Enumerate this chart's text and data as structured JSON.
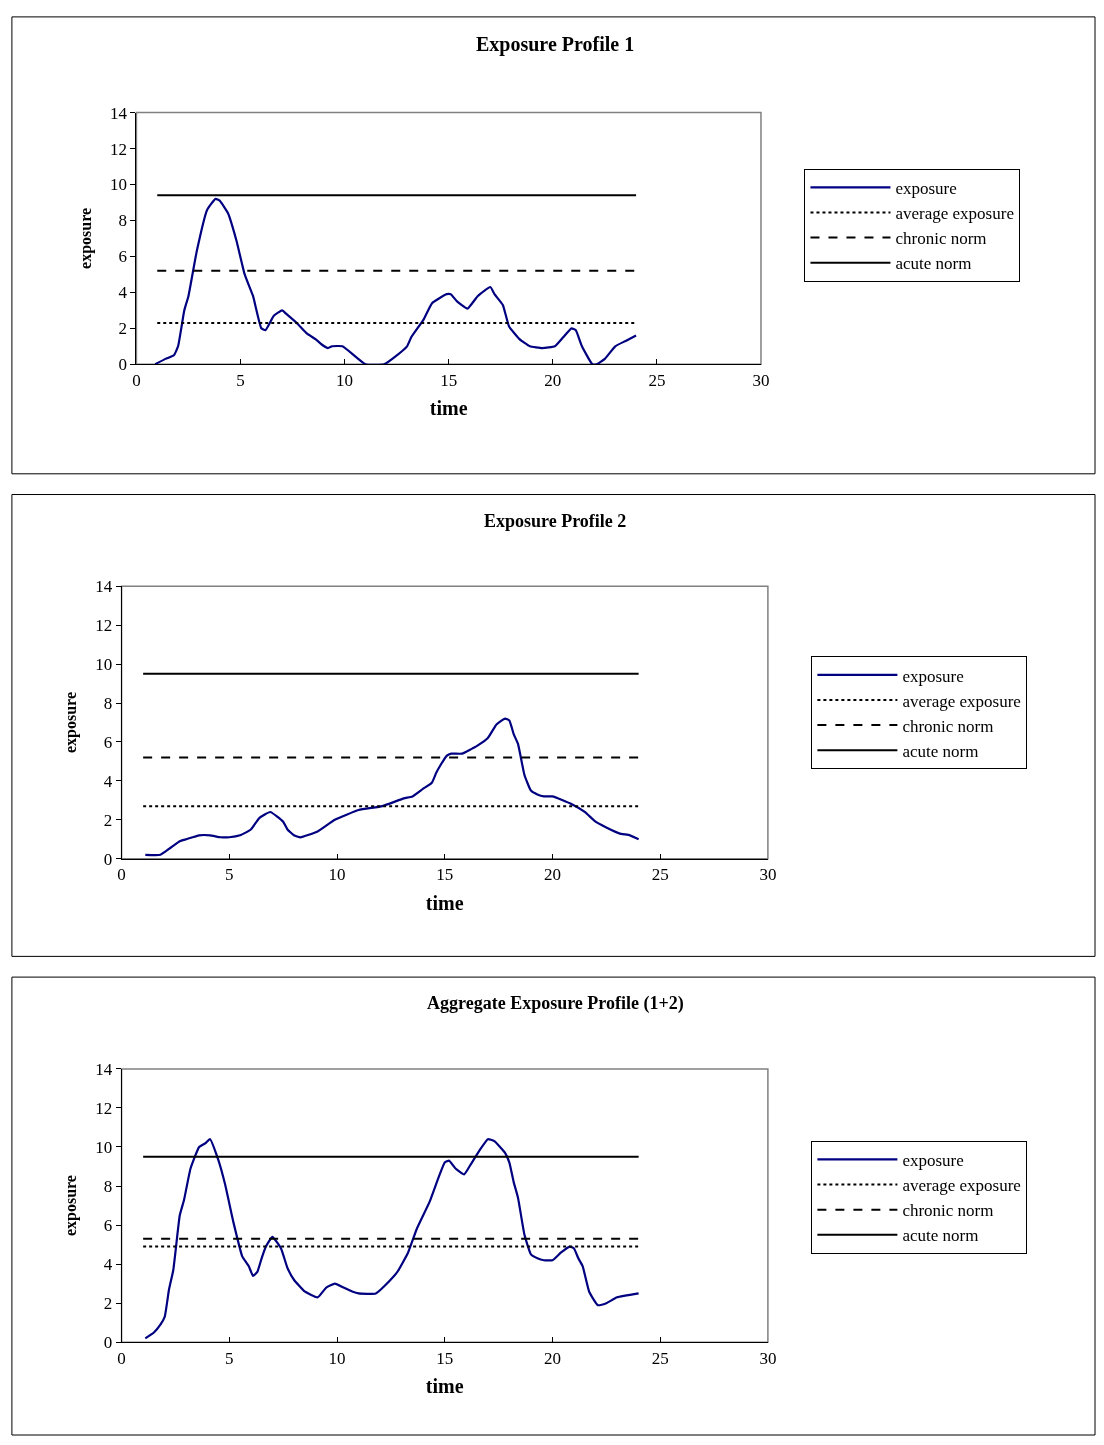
{
  "chart_data": [
    {
      "type": "line",
      "title": "Exposure Profile 1",
      "xlabel": "time",
      "ylabel": "exposure",
      "xlim": [
        0,
        30
      ],
      "xticks": [
        0,
        5,
        10,
        15,
        20,
        25,
        30
      ],
      "ylim": [
        0,
        14
      ],
      "yticks": [
        0,
        2,
        4,
        6,
        8,
        10,
        12,
        14
      ],
      "legend": "right",
      "grid": false,
      "series": [
        {
          "name": "exposure",
          "color": "#000080",
          "line_style": "solid",
          "x": [
            0.9,
            1.4,
            1.8,
            2.0,
            2.3,
            2.5,
            2.9,
            3.4,
            3.8,
            4.0,
            4.4,
            4.8,
            5.2,
            5.6,
            6.0,
            6.2,
            6.6,
            7.0,
            7.2,
            7.7,
            8.2,
            8.6,
            8.9,
            9.2,
            9.4,
            9.9,
            11.0,
            11.9,
            12.4,
            13.0,
            13.2,
            13.8,
            14.2,
            14.9,
            15.1,
            15.4,
            15.9,
            16.4,
            17.0,
            17.2,
            17.6,
            17.9,
            18.4,
            18.9,
            19.5,
            20.1,
            20.5,
            20.9,
            21.1,
            21.4,
            21.9,
            22.1,
            22.5,
            23.0,
            23.5,
            24.0
          ],
          "values": [
            0,
            0.3,
            0.5,
            1.0,
            3.0,
            3.8,
            6.3,
            8.6,
            9.2,
            9.1,
            8.4,
            6.9,
            5.0,
            3.8,
            2.0,
            1.9,
            2.7,
            3.0,
            2.8,
            2.3,
            1.7,
            1.4,
            1.1,
            0.9,
            1.0,
            1.0,
            0,
            0,
            0.4,
            1.0,
            1.5,
            2.5,
            3.4,
            3.9,
            3.9,
            3.5,
            3.1,
            3.8,
            4.3,
            3.9,
            3.3,
            2.1,
            1.4,
            1.0,
            0.9,
            1.0,
            1.5,
            2.0,
            1.9,
            1.0,
            0,
            0,
            0.3,
            1.0,
            1.3,
            1.6
          ]
        },
        {
          "name": "average exposure",
          "color": "#000000",
          "line_style": "dotted",
          "x": [
            1,
            24
          ],
          "values": [
            2.3,
            2.3
          ]
        },
        {
          "name": "chronic norm",
          "color": "#000000",
          "line_style": "dashed",
          "x": [
            1,
            24
          ],
          "values": [
            5.2,
            5.2
          ]
        },
        {
          "name": "acute norm",
          "color": "#000000",
          "line_style": "solid",
          "x": [
            1,
            24
          ],
          "values": [
            9.4,
            9.4
          ]
        }
      ]
    },
    {
      "type": "line",
      "title": "Exposure Profile 2",
      "xlabel": "time",
      "ylabel": "exposure",
      "xlim": [
        0,
        30
      ],
      "xticks": [
        0,
        5,
        10,
        15,
        20,
        25,
        30
      ],
      "ylim": [
        0,
        14
      ],
      "yticks": [
        0,
        2,
        4,
        6,
        8,
        10,
        12,
        14
      ],
      "legend": "right",
      "grid": false,
      "series": [
        {
          "name": "exposure",
          "color": "#000080",
          "line_style": "solid",
          "x": [
            1.1,
            1.8,
            2.2,
            2.7,
            3.0,
            3.6,
            4.1,
            4.6,
            5.0,
            5.5,
            6.0,
            6.4,
            6.9,
            7.5,
            7.7,
            8.0,
            8.3,
            9.1,
            9.9,
            11.0,
            12.1,
            13.1,
            13.5,
            14.0,
            14.4,
            14.6,
            14.8,
            15.1,
            15.3,
            15.8,
            16.5,
            17.0,
            17.4,
            17.8,
            18.0,
            18.2,
            18.4,
            18.7,
            19.0,
            19.3,
            19.6,
            20.0,
            20.9,
            21.5,
            22.0,
            22.5,
            23.1,
            23.6,
            24.0
          ],
          "values": [
            0.2,
            0.2,
            0.5,
            0.9,
            1.0,
            1.2,
            1.2,
            1.1,
            1.1,
            1.2,
            1.5,
            2.1,
            2.4,
            1.9,
            1.5,
            1.2,
            1.1,
            1.4,
            2.0,
            2.5,
            2.7,
            3.1,
            3.2,
            3.6,
            3.9,
            4.4,
            4.8,
            5.3,
            5.4,
            5.4,
            5.8,
            6.2,
            6.9,
            7.2,
            7.1,
            6.4,
            5.9,
            4.3,
            3.5,
            3.3,
            3.2,
            3.2,
            2.8,
            2.4,
            1.9,
            1.6,
            1.3,
            1.2,
            1.0
          ]
        },
        {
          "name": "average exposure",
          "color": "#000000",
          "line_style": "dotted",
          "x": [
            1,
            24
          ],
          "values": [
            2.7,
            2.7
          ]
        },
        {
          "name": "chronic norm",
          "color": "#000000",
          "line_style": "dashed",
          "x": [
            1,
            24
          ],
          "values": [
            5.2,
            5.2
          ]
        },
        {
          "name": "acute norm",
          "color": "#000000",
          "line_style": "solid",
          "x": [
            1,
            24
          ],
          "values": [
            9.5,
            9.5
          ]
        }
      ]
    },
    {
      "type": "line",
      "title": "Aggregate Exposure Profile (1+2)",
      "xlabel": "time",
      "ylabel": "exposure",
      "xlim": [
        0,
        30
      ],
      "xticks": [
        0,
        5,
        10,
        15,
        20,
        25,
        30
      ],
      "ylim": [
        0,
        14
      ],
      "yticks": [
        0,
        2,
        4,
        6,
        8,
        10,
        12,
        14
      ],
      "legend": "right",
      "grid": false,
      "series": [
        {
          "name": "exposure",
          "color": "#000080",
          "line_style": "solid",
          "x": [
            1.1,
            1.5,
            1.8,
            2.0,
            2.2,
            2.4,
            2.7,
            2.9,
            3.2,
            3.6,
            3.9,
            4.1,
            4.5,
            4.8,
            5.2,
            5.6,
            5.9,
            6.1,
            6.3,
            6.5,
            6.7,
            7.0,
            7.4,
            7.7,
            8.0,
            8.5,
            9.1,
            9.5,
            9.9,
            10.3,
            10.7,
            11.0,
            11.8,
            12.4,
            12.8,
            13.3,
            13.7,
            14.3,
            14.6,
            15.0,
            15.2,
            15.5,
            15.9,
            16.2,
            16.6,
            17.0,
            17.3,
            17.8,
            18.0,
            18.2,
            18.4,
            18.7,
            19.0,
            19.3,
            19.6,
            20.0,
            20.4,
            20.8,
            21.0,
            21.2,
            21.4,
            21.7,
            22.1,
            22.5,
            23.0,
            24.0
          ],
          "values": [
            0.2,
            0.5,
            0.9,
            1.3,
            2.7,
            3.7,
            6.5,
            7.3,
            8.9,
            10.0,
            10.2,
            10.4,
            9.3,
            8.1,
            6.1,
            4.4,
            3.9,
            3.4,
            3.6,
            4.3,
            4.9,
            5.4,
            4.8,
            3.8,
            3.2,
            2.6,
            2.3,
            2.8,
            3.0,
            2.8,
            2.6,
            2.5,
            2.5,
            3.1,
            3.6,
            4.6,
            5.8,
            7.2,
            8.1,
            9.2,
            9.3,
            8.9,
            8.6,
            9.1,
            9.8,
            10.4,
            10.3,
            9.7,
            9.2,
            8.2,
            7.4,
            5.5,
            4.5,
            4.3,
            4.2,
            4.2,
            4.6,
            4.9,
            4.8,
            4.3,
            3.9,
            2.6,
            1.9,
            2.0,
            2.3,
            2.5
          ]
        },
        {
          "name": "average exposure",
          "color": "#000000",
          "line_style": "dotted",
          "x": [
            1,
            24
          ],
          "values": [
            4.9,
            4.9
          ]
        },
        {
          "name": "chronic norm",
          "color": "#000000",
          "line_style": "dashed",
          "x": [
            1,
            24
          ],
          "values": [
            5.3,
            5.3
          ]
        },
        {
          "name": "acute norm",
          "color": "#000000",
          "line_style": "solid",
          "x": [
            1,
            24
          ],
          "values": [
            9.5,
            9.5
          ]
        }
      ]
    }
  ]
}
